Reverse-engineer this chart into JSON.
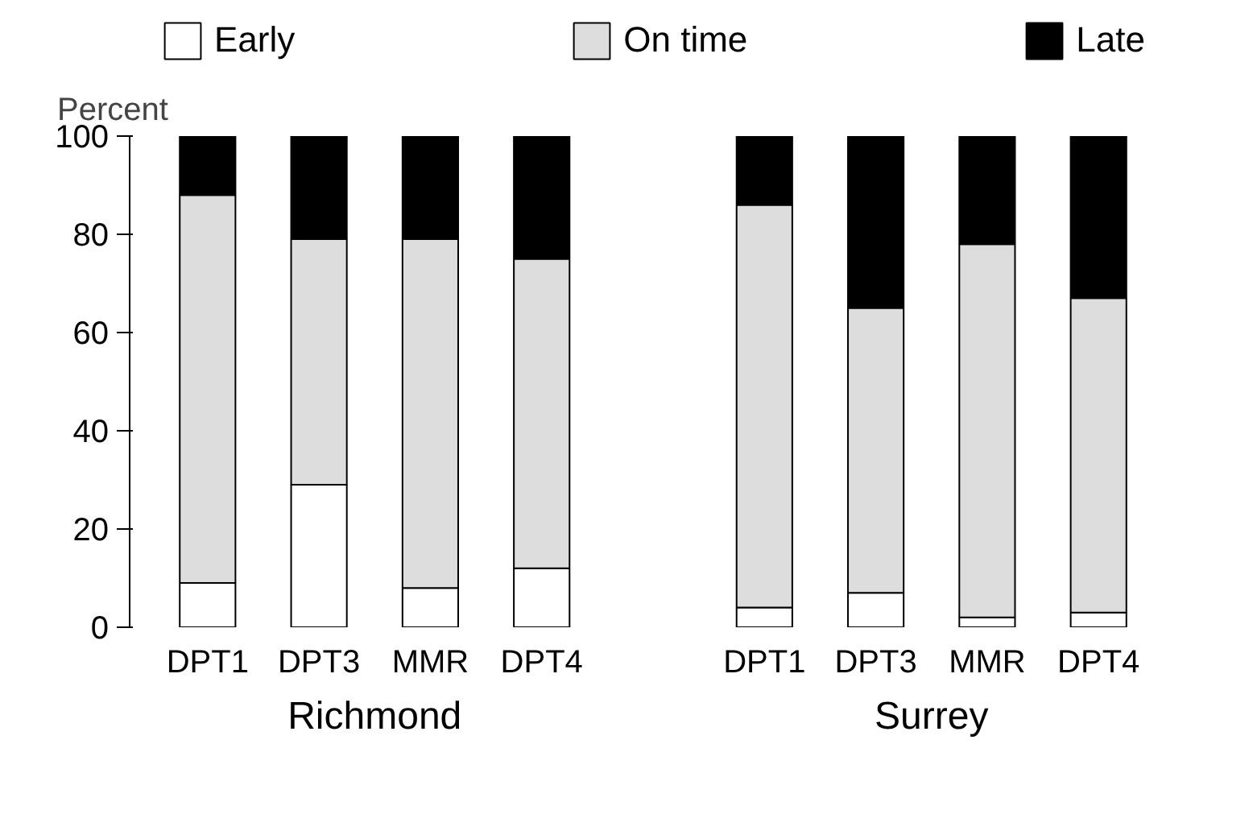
{
  "chart_data": {
    "type": "bar",
    "stacked": true,
    "ylabel": "Percent",
    "categories": [
      "DPT1",
      "DPT3",
      "MMR",
      "DPT4",
      null,
      "DPT1",
      "DPT3",
      "MMR",
      "DPT4"
    ],
    "series": [
      {
        "name": "Early",
        "color": "#ffffff",
        "values": [
          9,
          29,
          8,
          12,
          null,
          4,
          7,
          2,
          3
        ]
      },
      {
        "name": "On time",
        "color": "#dddddd",
        "values": [
          79,
          50,
          71,
          63,
          null,
          82,
          58,
          76,
          64
        ]
      },
      {
        "name": "Late",
        "color": "#000000",
        "values": [
          12,
          21,
          21,
          25,
          null,
          14,
          35,
          22,
          33
        ]
      }
    ],
    "annotations": [
      "Richmond",
      "Surrey"
    ],
    "ylim": [
      0,
      100
    ],
    "yticks": [
      0,
      20,
      40,
      60,
      80,
      100
    ],
    "grid": false,
    "legend": "top"
  }
}
